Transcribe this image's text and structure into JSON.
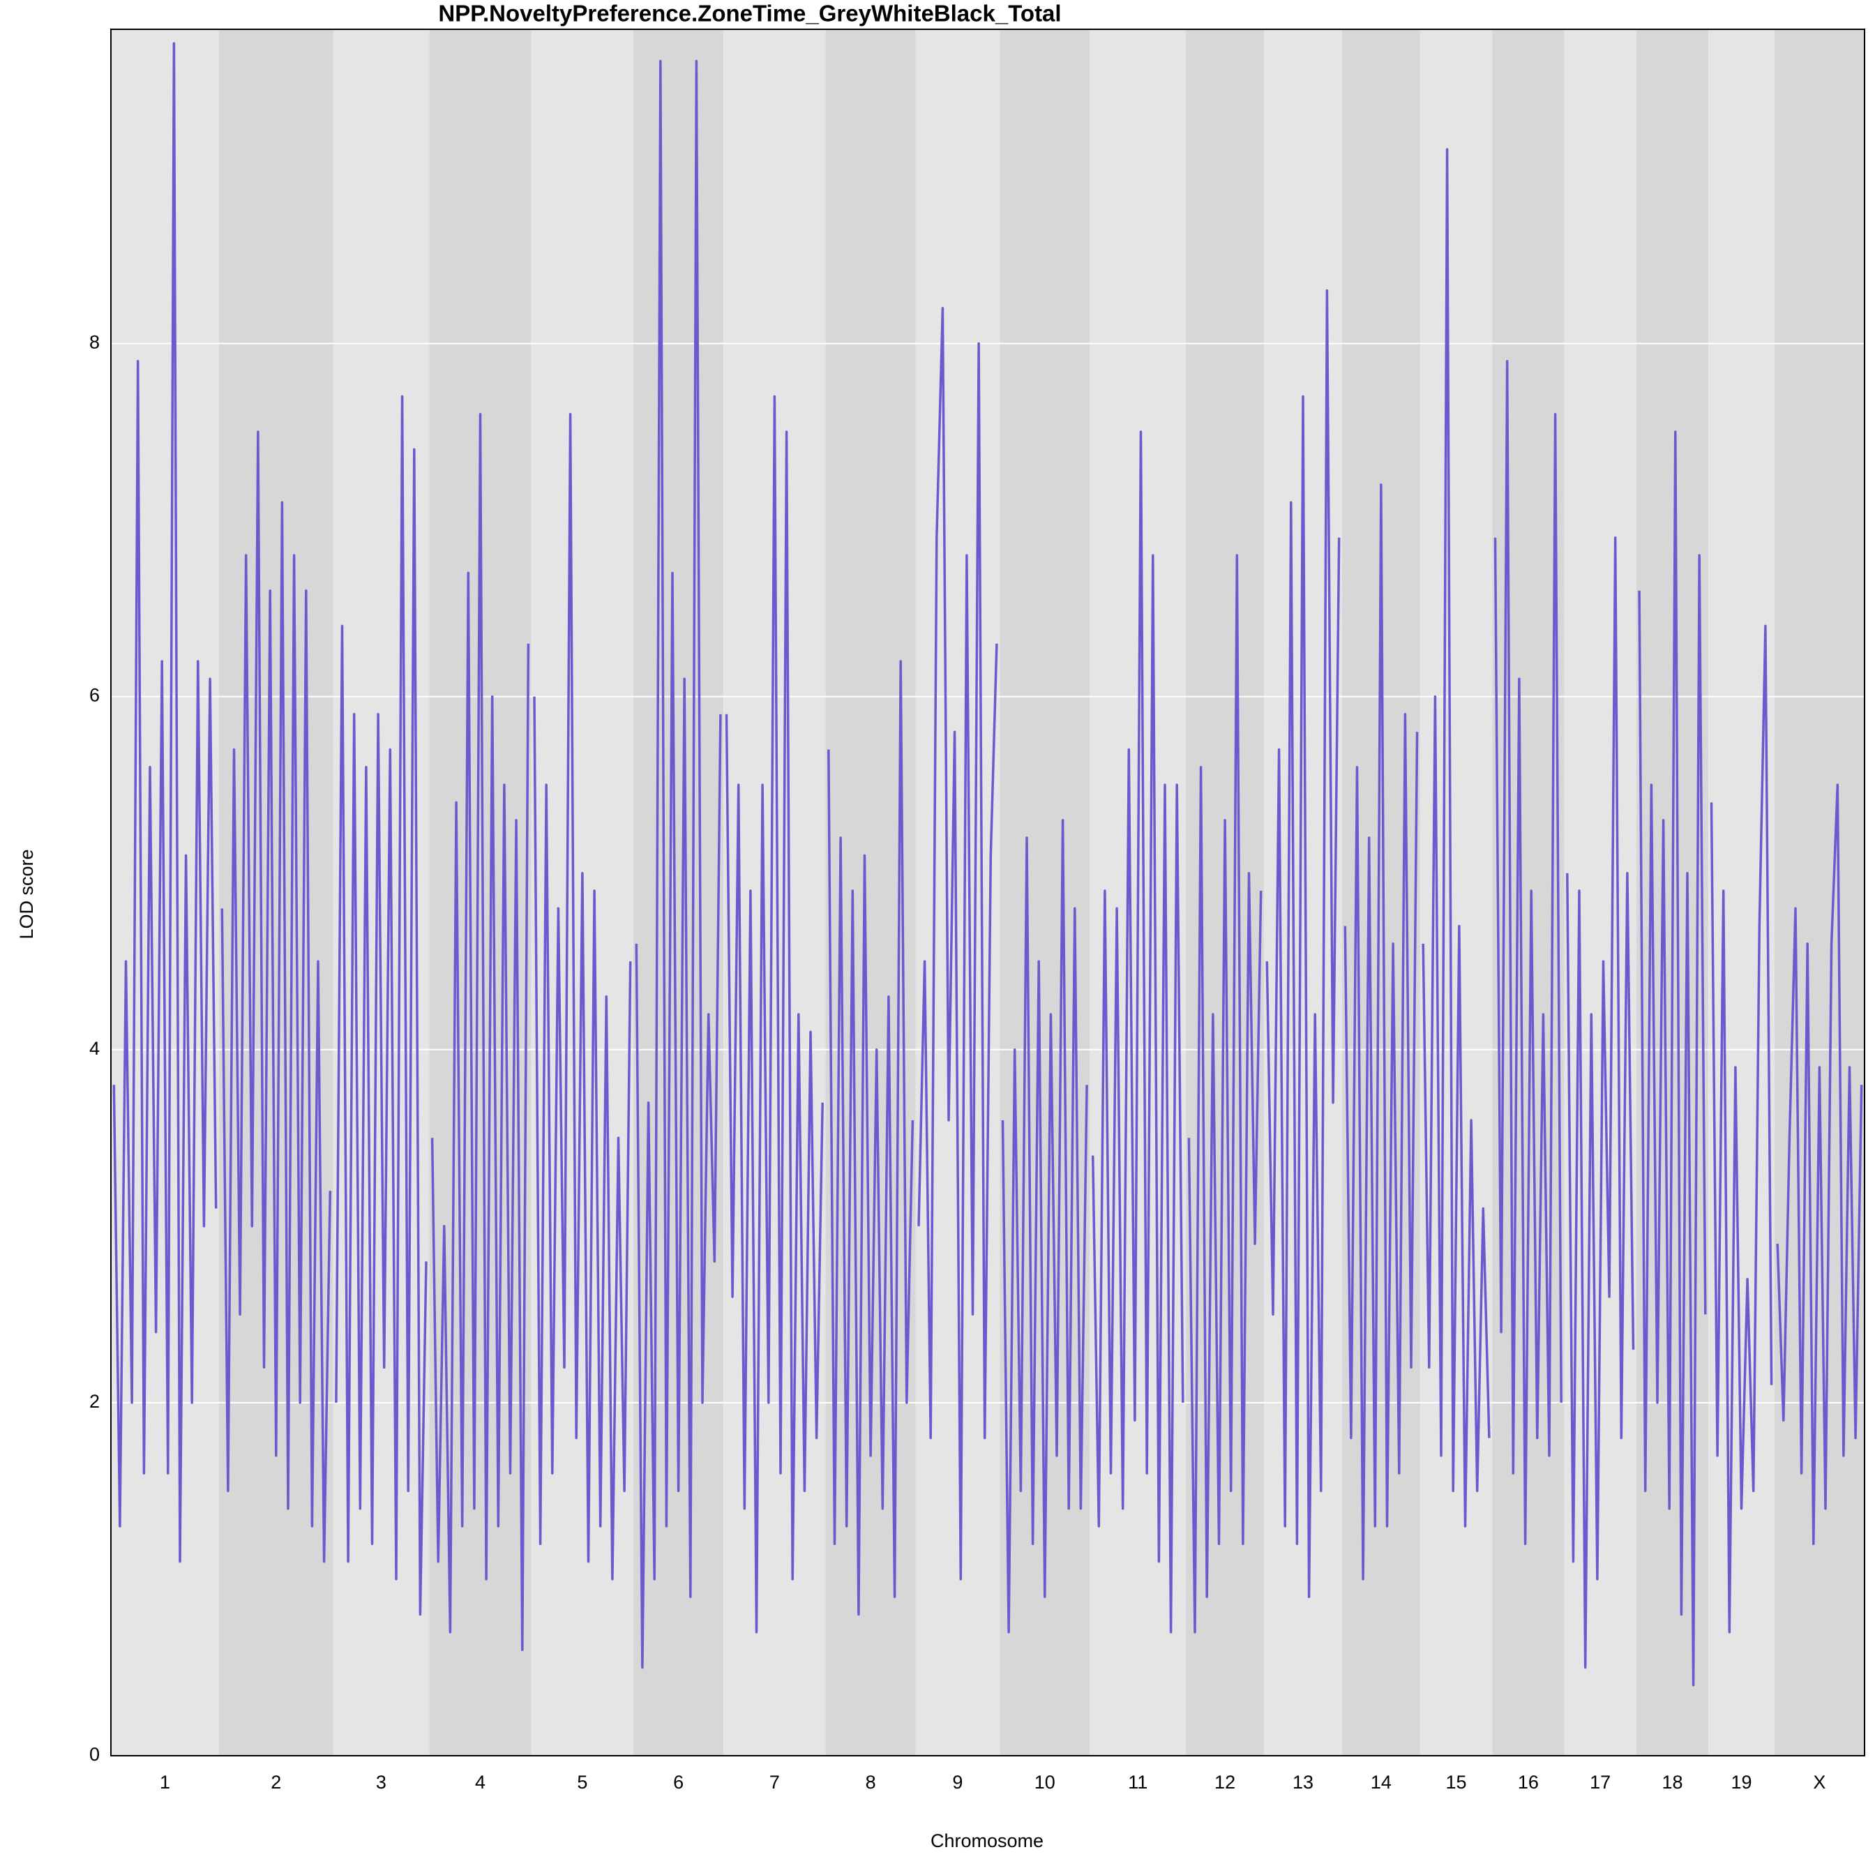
{
  "chart_data": {
    "type": "line",
    "title": "NPP.NoveltyPreference.ZoneTime_GreyWhiteBlack_Total",
    "x_label": "Chromosome",
    "y_label": "LOD score",
    "ylim": [
      0,
      9.78
    ],
    "yticks": [
      0,
      2,
      4,
      6,
      8
    ],
    "grid": true,
    "color": "#6a5acd",
    "band_colors": [
      "#e5e5e5",
      "#d7d7d7"
    ],
    "chromosomes": [
      {
        "name": "1",
        "values": [
          3.8,
          1.3,
          4.5,
          2.0,
          7.9,
          1.6,
          5.6,
          2.4,
          6.2,
          1.6,
          9.7,
          1.1,
          5.1,
          2.0,
          6.2,
          3.0,
          6.1,
          3.1
        ]
      },
      {
        "name": "2",
        "values": [
          4.8,
          1.5,
          5.7,
          2.5,
          6.8,
          3.0,
          7.5,
          2.2,
          6.6,
          1.7,
          7.1,
          1.4,
          6.8,
          2.0,
          6.6,
          1.3,
          4.5,
          1.1,
          3.2
        ]
      },
      {
        "name": "3",
        "values": [
          2.0,
          6.4,
          1.1,
          5.9,
          1.4,
          5.6,
          1.2,
          5.9,
          2.2,
          5.7,
          1.0,
          7.7,
          1.5,
          7.4,
          0.8,
          2.8
        ]
      },
      {
        "name": "4",
        "values": [
          3.5,
          1.1,
          3.0,
          0.7,
          5.4,
          1.3,
          6.7,
          1.4,
          7.6,
          1.0,
          6.0,
          1.3,
          5.5,
          1.6,
          5.3,
          0.6,
          6.3
        ]
      },
      {
        "name": "5",
        "values": [
          6.0,
          1.2,
          5.5,
          1.6,
          4.8,
          2.2,
          7.6,
          1.8,
          5.0,
          1.1,
          4.9,
          1.3,
          4.3,
          1.0,
          3.5,
          1.5,
          4.5
        ]
      },
      {
        "name": "6",
        "values": [
          4.6,
          0.5,
          3.7,
          1.0,
          9.6,
          1.3,
          6.7,
          1.5,
          6.1,
          0.9,
          9.6,
          2.0,
          4.2,
          2.8,
          5.9
        ]
      },
      {
        "name": "7",
        "values": [
          5.9,
          2.6,
          5.5,
          1.4,
          4.9,
          0.7,
          5.5,
          2.0,
          7.7,
          1.6,
          7.5,
          1.0,
          4.2,
          1.5,
          4.1,
          1.8,
          3.7
        ]
      },
      {
        "name": "8",
        "values": [
          5.7,
          1.2,
          5.2,
          1.3,
          4.9,
          0.8,
          5.1,
          1.7,
          4.0,
          1.4,
          4.3,
          0.9,
          6.2,
          2.0,
          3.6
        ]
      },
      {
        "name": "9",
        "values": [
          3.0,
          4.5,
          1.8,
          6.9,
          8.2,
          3.6,
          5.8,
          1.0,
          6.8,
          2.5,
          8.0,
          1.8,
          5.1,
          6.3
        ]
      },
      {
        "name": "10",
        "values": [
          3.6,
          0.7,
          4.0,
          1.5,
          5.2,
          1.2,
          4.5,
          0.9,
          4.2,
          1.7,
          5.3,
          1.4,
          4.8,
          1.4,
          3.8
        ]
      },
      {
        "name": "11",
        "values": [
          3.4,
          1.3,
          4.9,
          1.6,
          4.8,
          1.4,
          5.7,
          1.9,
          7.5,
          1.6,
          6.8,
          1.1,
          5.5,
          0.7,
          5.5,
          2.0
        ]
      },
      {
        "name": "12",
        "values": [
          3.5,
          0.7,
          5.6,
          0.9,
          4.2,
          1.2,
          5.3,
          1.5,
          6.8,
          1.2,
          5.0,
          2.9,
          4.9
        ]
      },
      {
        "name": "13",
        "values": [
          4.5,
          2.5,
          5.7,
          1.3,
          7.1,
          1.2,
          7.7,
          0.9,
          4.2,
          1.5,
          8.3,
          3.7,
          6.9
        ]
      },
      {
        "name": "14",
        "values": [
          4.7,
          1.8,
          5.6,
          1.0,
          5.2,
          1.3,
          7.2,
          1.3,
          4.6,
          1.6,
          5.9,
          2.2,
          5.8
        ]
      },
      {
        "name": "15",
        "values": [
          4.6,
          2.2,
          6.0,
          1.7,
          9.1,
          1.5,
          4.7,
          1.3,
          3.6,
          1.5,
          3.1,
          1.8
        ]
      },
      {
        "name": "16",
        "values": [
          6.9,
          2.4,
          7.9,
          1.6,
          6.1,
          1.2,
          4.9,
          1.8,
          4.2,
          1.7,
          7.6,
          2.0
        ]
      },
      {
        "name": "17",
        "values": [
          5.0,
          1.1,
          4.9,
          0.5,
          4.2,
          1.0,
          4.5,
          2.6,
          6.9,
          1.8,
          5.0,
          2.3
        ]
      },
      {
        "name": "18",
        "values": [
          6.6,
          1.5,
          5.5,
          2.0,
          5.3,
          1.4,
          7.5,
          0.8,
          5.0,
          0.4,
          6.8,
          2.5
        ]
      },
      {
        "name": "19",
        "values": [
          5.4,
          1.7,
          4.9,
          0.7,
          3.9,
          1.4,
          2.7,
          1.5,
          4.7,
          6.4,
          2.1
        ]
      },
      {
        "name": "X",
        "values": [
          2.9,
          1.9,
          3.5,
          4.8,
          1.6,
          4.6,
          1.2,
          3.9,
          1.4,
          4.6,
          5.5,
          1.7,
          3.9,
          1.8,
          3.8
        ]
      }
    ]
  }
}
